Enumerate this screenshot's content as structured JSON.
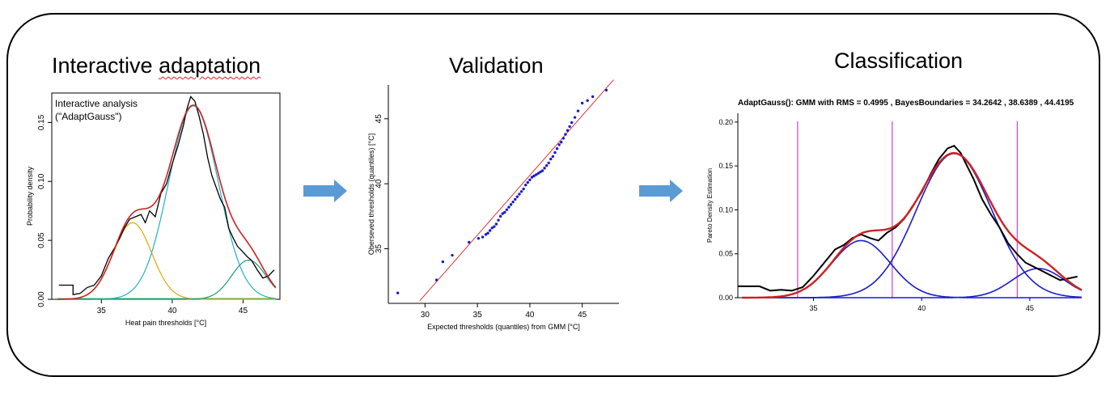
{
  "titles": {
    "left": "Interactive adaptation",
    "middle": "Validation",
    "right": "Classification"
  },
  "colors": {
    "arrow": "#5b9bd5",
    "empirical": "#000000",
    "mixture": "#cc2222",
    "comp1_left": "#e6a400",
    "comp2_left": "#22b0c8",
    "comp3_left": "#1a9a7a",
    "baseline_left": "#1aa040",
    "qq_points": "#1a1acc",
    "qq_line": "#dd3333",
    "components_right": "#1a1acc",
    "boundaries": "#cc44cc"
  },
  "chart_data": [
    {
      "type": "line",
      "panel": "left",
      "annotation": [
        "Interactive analysis",
        "(\"AdaptGauss\")"
      ],
      "xlabel": "Heat pain thresholds [°C]",
      "ylabel": "Probability density",
      "xlim": [
        31.5,
        47.6
      ],
      "ylim": [
        0,
        0.175
      ],
      "xticks": [
        35,
        40,
        45
      ],
      "yticks": [
        0.0,
        0.05,
        0.1,
        0.15
      ],
      "ytick_labels": [
        "0.00",
        "0.05",
        "0.10",
        "0.15"
      ],
      "components": [
        {
          "mean": 37.2,
          "sd": 1.35,
          "weight": 0.22
        },
        {
          "mean": 41.5,
          "sd": 1.75,
          "weight": 0.72
        },
        {
          "mean": 45.4,
          "sd": 1.2,
          "weight": 0.1
        }
      ],
      "empirical_pdf": {
        "x": [
          32.0,
          33.0,
          33.0,
          33.5,
          34.0,
          34.5,
          35.0,
          35.5,
          36.0,
          36.3,
          36.6,
          37.0,
          37.4,
          37.8,
          38.1,
          38.4,
          38.8,
          39.2,
          39.6,
          40.0,
          40.4,
          40.8,
          41.0,
          41.3,
          41.6,
          41.9,
          42.2,
          42.5,
          42.8,
          43.1,
          43.4,
          43.7,
          44.0,
          44.3,
          44.6,
          45.0,
          45.3,
          45.6,
          46.0,
          46.4,
          46.8,
          47.2
        ],
        "y": [
          0.012,
          0.012,
          0.004,
          0.005,
          0.01,
          0.012,
          0.02,
          0.035,
          0.045,
          0.052,
          0.06,
          0.068,
          0.07,
          0.072,
          0.065,
          0.075,
          0.07,
          0.09,
          0.098,
          0.115,
          0.13,
          0.148,
          0.16,
          0.172,
          0.168,
          0.155,
          0.14,
          0.12,
          0.105,
          0.095,
          0.085,
          0.078,
          0.06,
          0.052,
          0.045,
          0.04,
          0.036,
          0.033,
          0.025,
          0.018,
          0.02,
          0.025
        ]
      }
    },
    {
      "type": "scatter",
      "panel": "middle",
      "xlabel": "Expected thresholds (quantiles) from GMM [°C]",
      "ylabel": "Oberseved thresholds (quantiles) [°C]",
      "xlim": [
        26.5,
        48.5
      ],
      "ylim": [
        30.8,
        47.6
      ],
      "xticks": [
        30,
        35,
        40,
        45
      ],
      "yticks": [
        35,
        40,
        45
      ],
      "reference_line": [
        [
          29.5,
          31.0
        ],
        [
          48.0,
          48.0
        ]
      ],
      "points": {
        "x": [
          27.4,
          31.1,
          31.7,
          32.6,
          34.2,
          35.1,
          35.5,
          35.8,
          36.0,
          36.2,
          36.4,
          36.6,
          36.8,
          37.0,
          37.2,
          37.4,
          37.6,
          37.8,
          38.0,
          38.2,
          38.4,
          38.6,
          38.8,
          39.0,
          39.2,
          39.4,
          39.6,
          39.8,
          40.0,
          40.2,
          40.4,
          40.6,
          40.8,
          41.0,
          41.2,
          41.4,
          41.6,
          41.8,
          42.0,
          42.2,
          42.4,
          42.6,
          42.8,
          43.0,
          43.2,
          43.4,
          43.6,
          43.8,
          44.0,
          44.3,
          44.6,
          45.0,
          45.5,
          46.0,
          47.3
        ],
        "y": [
          31.6,
          32.6,
          34.0,
          34.5,
          35.5,
          35.8,
          35.9,
          36.1,
          36.2,
          36.4,
          36.6,
          36.7,
          36.9,
          37.2,
          37.5,
          37.7,
          37.8,
          38.0,
          38.2,
          38.4,
          38.6,
          38.8,
          39.0,
          39.2,
          39.4,
          39.6,
          39.9,
          40.1,
          40.3,
          40.5,
          40.6,
          40.7,
          40.8,
          40.9,
          41.0,
          41.2,
          41.4,
          41.6,
          41.9,
          42.1,
          42.4,
          42.7,
          43.0,
          43.2,
          43.5,
          43.8,
          44.1,
          44.4,
          44.7,
          45.1,
          45.6,
          46.2,
          46.4,
          46.7,
          47.2
        ]
      }
    },
    {
      "type": "line",
      "panel": "right",
      "title": "AdaptGauss(): GMM with RMS =  0.4995 , BayesBoundaries =  34.2642 ,  38.6389 ,  44.4195",
      "ylabel": "Pareto Density Estimation",
      "xlim": [
        31.5,
        47.4
      ],
      "ylim": [
        0,
        0.21
      ],
      "xticks": [
        35,
        40,
        45
      ],
      "yticks": [
        0.0,
        0.05,
        0.1,
        0.15,
        0.2
      ],
      "ytick_labels": [
        "0.00",
        "0.05",
        "0.10",
        "0.15",
        "0.20"
      ],
      "bayes_boundaries": [
        34.2642,
        38.6389,
        44.4195
      ],
      "components": [
        {
          "mean": 37.2,
          "sd": 1.35,
          "weight": 0.22
        },
        {
          "mean": 41.5,
          "sd": 1.75,
          "weight": 0.72
        },
        {
          "mean": 45.4,
          "sd": 1.2,
          "weight": 0.1
        }
      ],
      "empirical_pdf": {
        "x": [
          31.5,
          32.5,
          33.0,
          33.5,
          34.0,
          34.5,
          35.0,
          35.5,
          36.0,
          36.4,
          36.8,
          37.2,
          37.6,
          38.0,
          38.4,
          38.8,
          39.2,
          39.6,
          40.0,
          40.4,
          40.8,
          41.2,
          41.5,
          41.8,
          42.1,
          42.4,
          42.8,
          43.2,
          43.6,
          44.0,
          44.4,
          44.8,
          45.2,
          45.6,
          46.0,
          46.4,
          46.8,
          47.2
        ],
        "y": [
          0.013,
          0.013,
          0.008,
          0.009,
          0.008,
          0.012,
          0.025,
          0.04,
          0.055,
          0.06,
          0.068,
          0.072,
          0.068,
          0.065,
          0.074,
          0.08,
          0.09,
          0.105,
          0.12,
          0.14,
          0.158,
          0.17,
          0.173,
          0.165,
          0.15,
          0.135,
          0.112,
          0.095,
          0.08,
          0.062,
          0.05,
          0.04,
          0.035,
          0.03,
          0.025,
          0.02,
          0.022,
          0.024
        ]
      }
    }
  ]
}
